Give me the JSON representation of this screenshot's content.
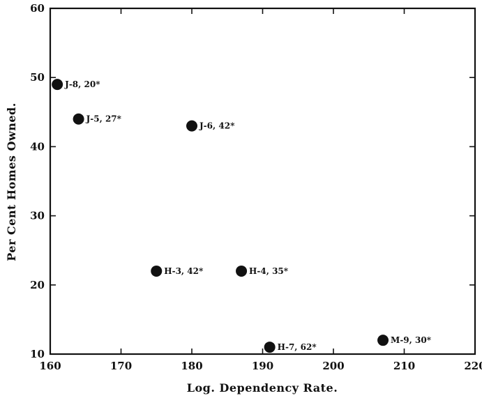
{
  "chart_data": {
    "type": "scatter",
    "title": "",
    "xlabel": "Log. Dependency Rate.",
    "ylabel": "Per Cent Homes Owned.",
    "xlim": [
      160,
      220
    ],
    "ylim": [
      10,
      60
    ],
    "x_ticks": [
      160,
      170,
      180,
      190,
      200,
      210,
      220
    ],
    "y_ticks": [
      10,
      20,
      30,
      40,
      50,
      60
    ],
    "x_tick_labels": [
      "160",
      "170",
      "180",
      "190",
      "200",
      "210",
      "220"
    ],
    "y_tick_labels": [
      "10",
      "20",
      "30",
      "40",
      "50",
      "60"
    ],
    "grid": false,
    "points": [
      {
        "label": "J-8, 20*",
        "x": 161,
        "y": 49
      },
      {
        "label": "J-5, 27*",
        "x": 164,
        "y": 44
      },
      {
        "label": "J-6, 42*",
        "x": 180,
        "y": 43
      },
      {
        "label": "H-3, 42*",
        "x": 175,
        "y": 22
      },
      {
        "label": "H-4, 35*",
        "x": 187,
        "y": 22
      },
      {
        "label": "H-7, 62*",
        "x": 191,
        "y": 11
      },
      {
        "label": "M-9, 30*",
        "x": 207,
        "y": 12
      }
    ],
    "marker_color": "#111111"
  }
}
